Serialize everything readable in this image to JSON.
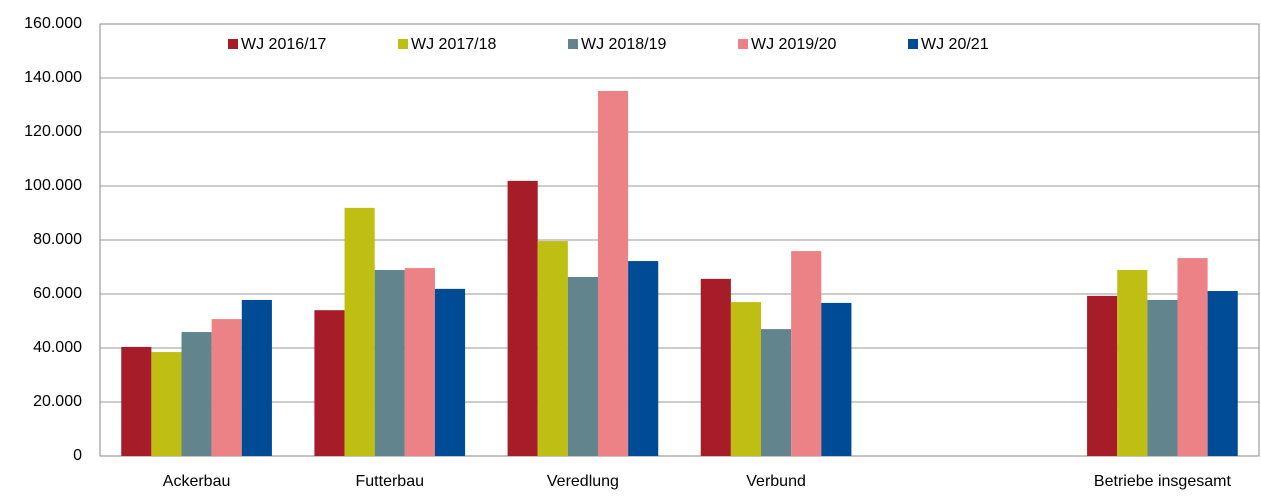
{
  "chart_data": {
    "type": "bar",
    "categories": [
      "Ackerbau",
      "Futterbau",
      "Veredlung",
      "Verbund",
      null,
      "Betriebe insgesamt"
    ],
    "series": [
      {
        "name": "WJ 2016/17",
        "color": "#a61c28",
        "values": [
          40400,
          54000,
          101900,
          65600,
          null,
          59300
        ]
      },
      {
        "name": "WJ 2017/18",
        "color": "#bfbe12",
        "values": [
          38500,
          91900,
          79600,
          57000,
          null,
          68900
        ]
      },
      {
        "name": "WJ 2018/19",
        "color": "#62848c",
        "values": [
          45900,
          68900,
          66300,
          47000,
          null,
          57800
        ]
      },
      {
        "name": "WJ 2019/20",
        "color": "#ec8186",
        "values": [
          50700,
          69600,
          135200,
          75900,
          null,
          73300
        ]
      },
      {
        "name": "WJ 20/21",
        "color": "#004b96",
        "values": [
          57800,
          61900,
          72200,
          56700,
          null,
          61100
        ]
      }
    ],
    "ylim": [
      0,
      160000
    ],
    "yticks": [
      0,
      {
        "value": 20000,
        "label": "20.000"
      },
      {
        "value": 40000,
        "label": "40.000"
      },
      {
        "value": 60000,
        "label": "60.000"
      },
      {
        "value": 80000,
        "label": "80.000"
      },
      {
        "value": 100000,
        "label": "100.000"
      },
      {
        "value": 120000,
        "label": "120.000"
      },
      {
        "value": 140000,
        "label": "140.000"
      },
      {
        "value": 160000,
        "label": "160.000"
      }
    ],
    "grid": true
  }
}
